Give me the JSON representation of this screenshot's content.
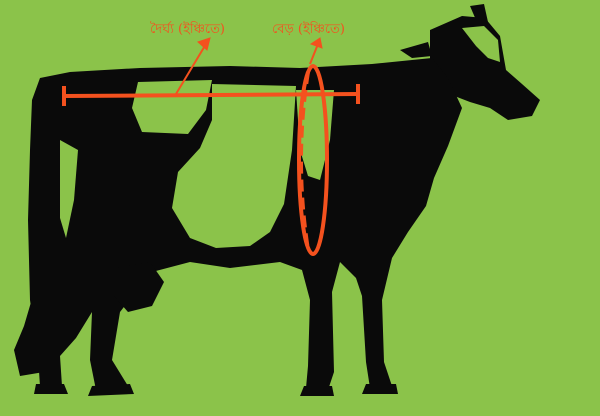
{
  "diagram": {
    "labels": {
      "length": "দৈর্ঘ্য (ইঞ্চিতে)",
      "girth": "বেড় (ইঞ্চিতে)"
    },
    "colors": {
      "background": "#8BC34A",
      "silhouette": "#0A0A0A",
      "patch": "#8BC34A",
      "measure": "#F4511E"
    }
  }
}
